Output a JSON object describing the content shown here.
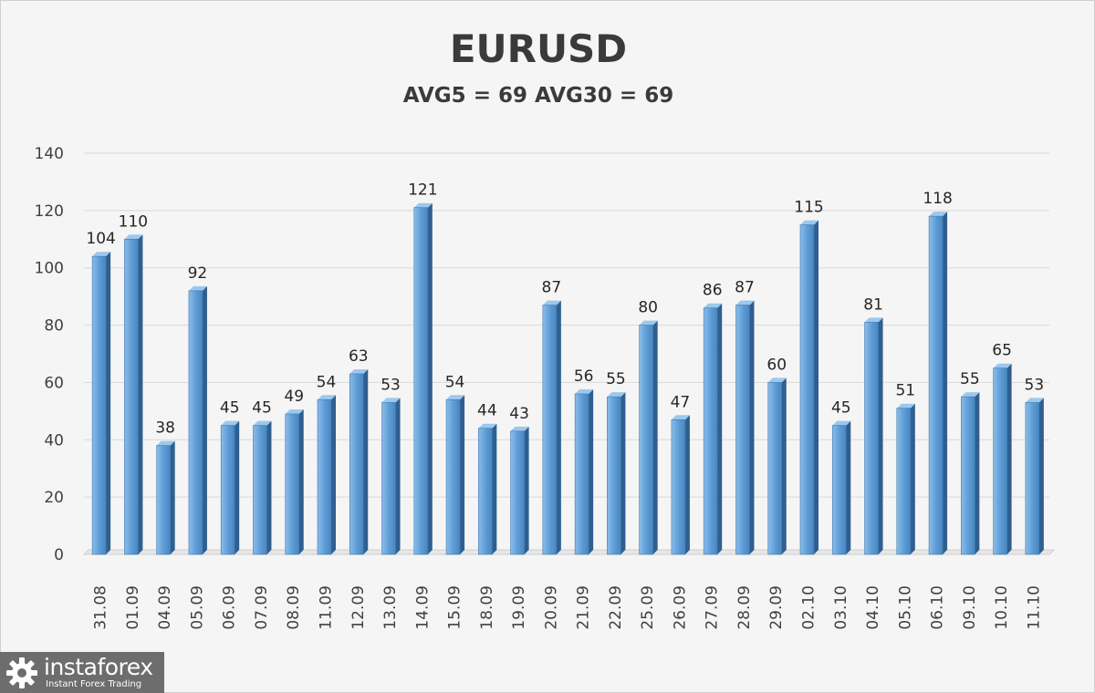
{
  "chart_data": {
    "type": "bar",
    "title": "EURUSD",
    "subtitle": "AVG5 = 69 AVG30 = 69",
    "xlabel": "",
    "ylabel": "",
    "ylim": [
      0,
      140
    ],
    "yticks": [
      0,
      20,
      40,
      60,
      80,
      100,
      120,
      140
    ],
    "grid": true,
    "legend": "none",
    "bar_color": "#5b9bd5",
    "categories": [
      "31.08",
      "01.09",
      "04.09",
      "05.09",
      "06.09",
      "07.09",
      "08.09",
      "11.09",
      "12.09",
      "13.09",
      "14.09",
      "15.09",
      "18.09",
      "19.09",
      "20.09",
      "21.09",
      "22.09",
      "25.09",
      "26.09",
      "27.09",
      "28.09",
      "29.09",
      "02.10",
      "03.10",
      "04.10",
      "05.10",
      "06.10",
      "09.10",
      "10.10",
      "11.10"
    ],
    "values": [
      104,
      110,
      38,
      92,
      45,
      45,
      49,
      54,
      63,
      53,
      121,
      54,
      44,
      43,
      87,
      56,
      55,
      80,
      47,
      86,
      87,
      60,
      115,
      45,
      81,
      51,
      118,
      55,
      65,
      53
    ]
  },
  "brand": {
    "name": "instaforex",
    "tagline": "Instant Forex Trading",
    "logo_icon": "gear-logo-icon"
  }
}
